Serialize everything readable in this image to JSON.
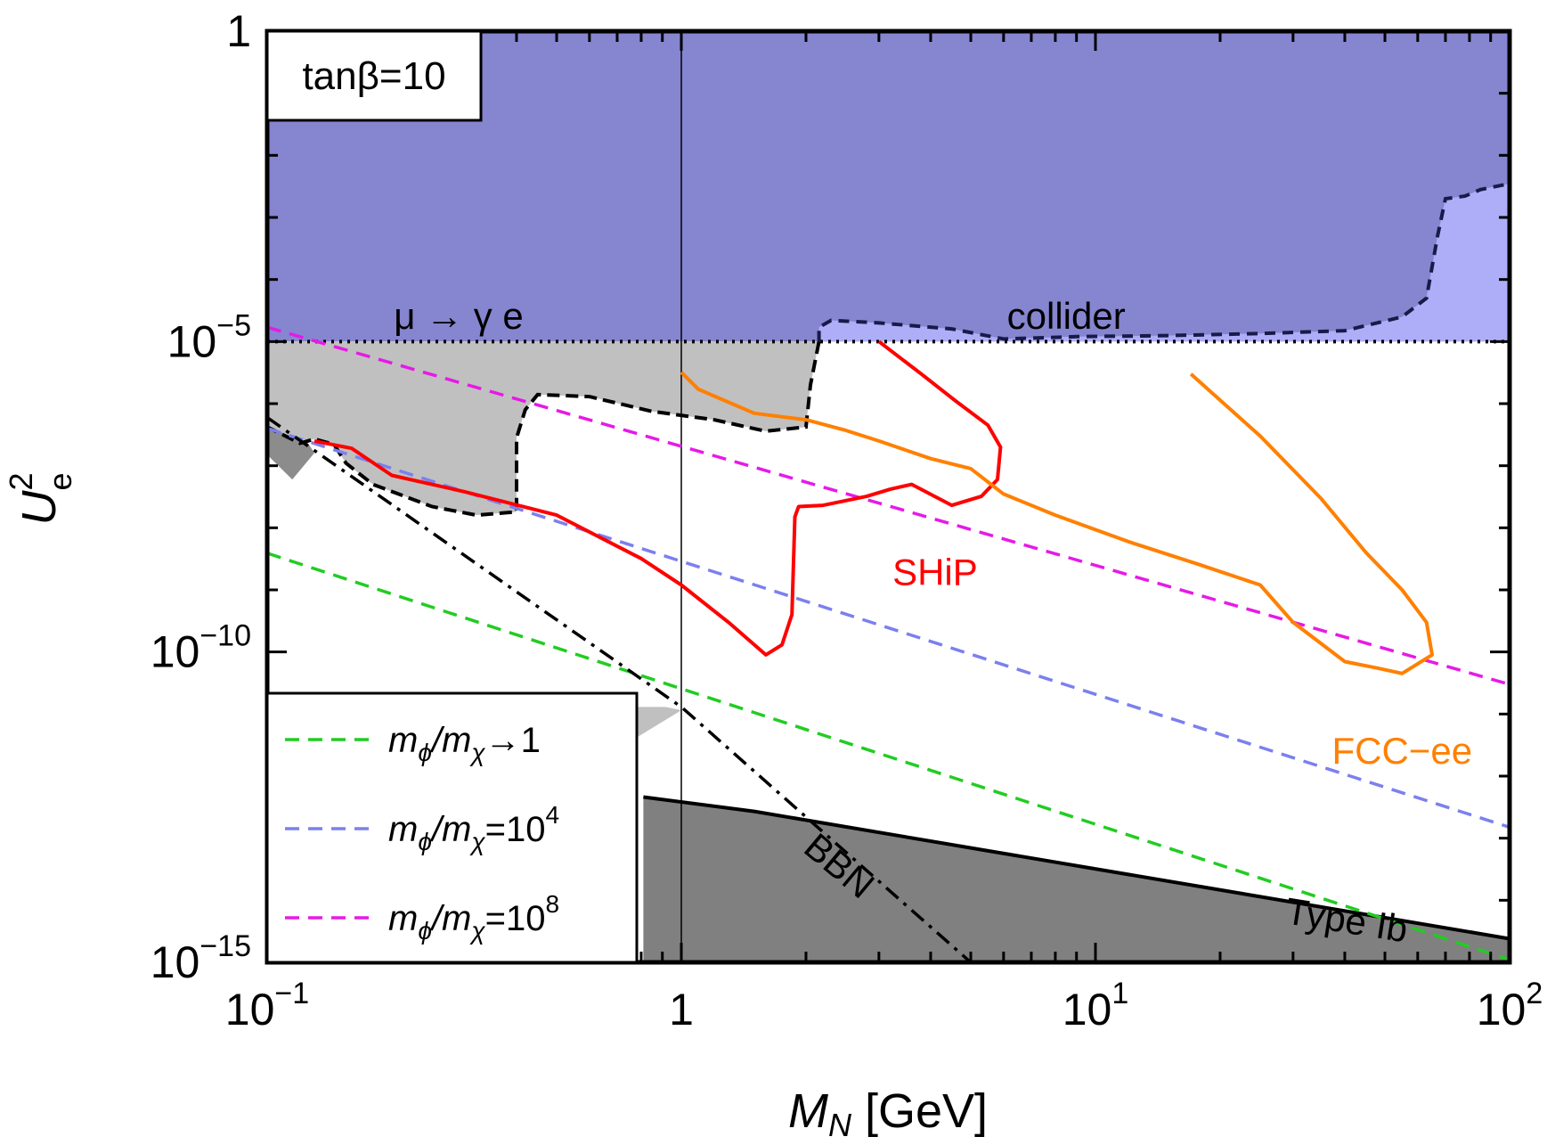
{
  "chart_data": {
    "type": "line",
    "title": "",
    "xlabel": "M_N [GeV]",
    "ylabel": "U_e^2",
    "xscale": "log",
    "yscale": "log",
    "xlim": [
      0.1,
      100
    ],
    "ylim": [
      1e-15,
      1
    ],
    "x_ticks": [
      {
        "value": 0.1,
        "base": "10",
        "exp": "−1"
      },
      {
        "value": 1,
        "base": "1",
        "exp": ""
      },
      {
        "value": 10,
        "base": "10",
        "exp": "1"
      },
      {
        "value": 100,
        "base": "10",
        "exp": "2"
      }
    ],
    "y_ticks": [
      {
        "value": 1,
        "base": "1",
        "exp": ""
      },
      {
        "value": 1e-05,
        "base": "10",
        "exp": "−5"
      },
      {
        "value": 1e-10,
        "base": "10",
        "exp": "−10"
      },
      {
        "value": 1e-15,
        "base": "10",
        "exp": "−15"
      }
    ],
    "inset_label": "tanβ=10",
    "reference_lines": [
      {
        "name": "x = 1 GeV",
        "x": 1,
        "color": "#000000"
      },
      {
        "name": "mu-gamma-e bound",
        "y": 1e-05,
        "color": "#000000",
        "style": "dotted"
      }
    ],
    "regions": [
      {
        "name": "μ → γ e",
        "color": "#8585d0",
        "points": [
          [
            0.1,
            1e-05
          ],
          [
            100,
            1e-05
          ],
          [
            100,
            1
          ],
          [
            0.1,
            1
          ]
        ]
      },
      {
        "name": "collider",
        "color": "#aeaef8",
        "border": "#1a1a4a",
        "points": [
          [
            2.15,
            1e-05
          ],
          [
            2.15,
            1.7e-05
          ],
          [
            2.3,
            2.2e-05
          ],
          [
            3.0,
            2e-05
          ],
          [
            4.5,
            1.6e-05
          ],
          [
            6.0,
            1.1e-05
          ],
          [
            9.0,
            1.2e-05
          ],
          [
            15,
            1.25e-05
          ],
          [
            25,
            1.35e-05
          ],
          [
            40,
            1.5e-05
          ],
          [
            55,
            2.5e-05
          ],
          [
            63,
            5e-05
          ],
          [
            67,
            0.0005
          ],
          [
            70,
            0.002
          ],
          [
            78,
            0.0022
          ],
          [
            85,
            0.0028
          ],
          [
            100,
            0.0035
          ],
          [
            100,
            1e-05
          ]
        ]
      },
      {
        "name": "excluded-grey",
        "color": "#c0c0c0",
        "border": "#000000",
        "points": [
          [
            0.1,
            1e-05
          ],
          [
            2.15,
            1e-05
          ],
          [
            2.05,
            2e-06
          ],
          [
            2.0,
            4.2e-07
          ],
          [
            1.6,
            3.6e-07
          ],
          [
            1.2,
            5.5e-07
          ],
          [
            0.85,
            7.5e-07
          ],
          [
            0.6,
            1.3e-06
          ],
          [
            0.45,
            1.4e-06
          ],
          [
            0.42,
            8e-07
          ],
          [
            0.4,
            2.8e-07
          ],
          [
            0.4,
            1.8e-08
          ],
          [
            0.32,
            1.6e-08
          ],
          [
            0.25,
            2.2e-08
          ],
          [
            0.18,
            5e-08
          ],
          [
            0.155,
            1.1e-07
          ],
          [
            0.145,
            2.2e-07
          ],
          [
            0.13,
            2.7e-07
          ],
          [
            0.12,
            2.3e-07
          ],
          [
            0.1,
            4.2e-07
          ],
          [
            0.1,
            1.3e-11
          ],
          [
            0.915,
            1.3e-11
          ],
          [
            1.0,
            1.15e-11
          ],
          [
            0.1,
            1e-15
          ]
        ]
      },
      {
        "name": "BBN-dark",
        "color": "#8c8c8c",
        "points": [
          [
            0.1,
            1.5e-07
          ],
          [
            0.1,
            4.2e-07
          ],
          [
            0.125,
            2.4e-07
          ],
          [
            0.13,
            1.6e-07
          ],
          [
            0.115,
            6e-08
          ],
          [
            0.1,
            1.5e-07
          ]
        ]
      },
      {
        "name": "Type Ib",
        "color": "#808080",
        "border": "#000000",
        "points": [
          [
            0.81,
            1e-15
          ],
          [
            0.81,
            4.6e-13
          ],
          [
            1.5,
            2.7e-13
          ],
          [
            100,
            2.4e-15
          ],
          [
            100,
            1e-15
          ]
        ]
      }
    ],
    "series": [
      {
        "name": "SHiP",
        "color": "#ff0000",
        "style": "solid",
        "points": [
          [
            0.13,
            2.5e-07
          ],
          [
            0.16,
            1.9e-07
          ],
          [
            0.2,
            7e-08
          ],
          [
            0.3,
            3.8e-08
          ],
          [
            0.5,
            1.6e-08
          ],
          [
            0.8,
            3.2e-09
          ],
          [
            1.0,
            1.2e-09
          ],
          [
            1.3,
            3e-10
          ],
          [
            1.6,
            9e-11
          ],
          [
            1.75,
            1.3e-10
          ],
          [
            1.85,
            4e-10
          ],
          [
            1.88,
            1.5e-08
          ],
          [
            1.92,
            2.2e-08
          ],
          [
            2.2,
            2.3e-08
          ],
          [
            2.8,
            3.2e-08
          ],
          [
            3.2,
            4.2e-08
          ],
          [
            3.6,
            5e-08
          ],
          [
            4.5,
            2.3e-08
          ],
          [
            5.3,
            3.2e-08
          ],
          [
            5.8,
            6e-08
          ],
          [
            5.9,
            2e-07
          ],
          [
            5.5,
            4.5e-07
          ],
          [
            4.6,
            1.1e-06
          ],
          [
            3.8,
            3e-06
          ],
          [
            3.0,
            1e-05
          ]
        ]
      },
      {
        "name": "FCC-ee",
        "color": "#ff8000",
        "style": "solid",
        "points": [
          [
            1.0,
            3.2e-06
          ],
          [
            1.1,
            1.7e-06
          ],
          [
            1.5,
            7e-07
          ],
          [
            2.0,
            5.5e-07
          ],
          [
            2.5,
            3.7e-07
          ],
          [
            3.0,
            2.5e-07
          ],
          [
            4.0,
            1.3e-07
          ],
          [
            5.0,
            9e-08
          ],
          [
            6.0,
            3.5e-08
          ],
          [
            8.0,
            1.6e-08
          ],
          [
            12,
            6e-09
          ],
          [
            18,
            2.5e-09
          ],
          [
            25,
            1.2e-09
          ],
          [
            30,
            3e-10
          ],
          [
            40,
            7e-11
          ],
          [
            48,
            5.5e-11
          ],
          [
            55,
            4.5e-11
          ],
          [
            65,
            9e-11
          ],
          [
            63,
            3e-10
          ],
          [
            55,
            1e-09
          ],
          [
            45,
            4e-09
          ],
          [
            35,
            3e-08
          ],
          [
            25,
            3e-07
          ],
          [
            17,
            3e-06
          ]
        ]
      },
      {
        "name": "BBN",
        "color": "#000000",
        "style": "dashdot",
        "points": [
          [
            0.1,
            6e-07
          ],
          [
            1.0,
            1.3e-11
          ],
          [
            5.0,
            1e-15
          ]
        ]
      }
    ],
    "legend": [
      {
        "label_main": "m",
        "sub1": "ϕ",
        "sep": "/m",
        "sub2": "χ",
        "rel": "→1",
        "sup": "",
        "color": "#22cc22",
        "y_at_xmin": 3.9e-09,
        "y_at_xmax": 1.1e-15,
        "style": "dashed"
      },
      {
        "label_main": "m",
        "sub1": "ϕ",
        "sep": "/m",
        "sub2": "χ",
        "rel": "=10",
        "sup": "4",
        "color": "#7b80ee",
        "y_at_xmin": 4e-07,
        "y_at_xmax": 1.5e-13,
        "style": "dashed"
      },
      {
        "label_main": "m",
        "sub1": "ϕ",
        "sep": "/m",
        "sub2": "χ",
        "rel": "=10",
        "sup": "8",
        "color": "#e61ae6",
        "y_at_xmin": 1.7e-05,
        "y_at_xmax": 3e-11,
        "style": "dashed"
      }
    ],
    "annotations": [
      {
        "text": "μ → γ e",
        "color": "#000000",
        "x": 0.29,
        "y": 1.6e-05,
        "rotate": 0
      },
      {
        "text": "collider",
        "color": "#000000",
        "x": 8.5,
        "y": 1.6e-05,
        "rotate": 0
      },
      {
        "text": "SHiP",
        "color": "#ff0000",
        "x": 4.1,
        "y": 1.2e-09,
        "rotate": 0
      },
      {
        "text": "FCC−ee",
        "color": "#ff8000",
        "x": 55,
        "y": 1.6e-12,
        "rotate": 0
      },
      {
        "text": "BBN",
        "color": "#000000",
        "x": 2.3,
        "y": 2.5e-14,
        "rotate": 40
      },
      {
        "text": "Type Ib",
        "color": "#000000",
        "x": 40,
        "y": 3e-15,
        "rotate": 9
      }
    ]
  }
}
